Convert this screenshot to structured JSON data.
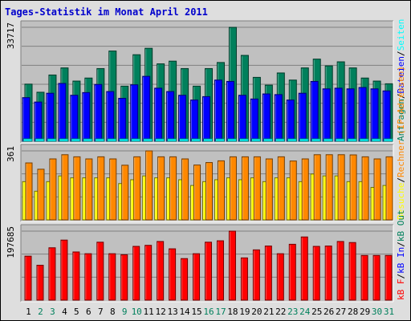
{
  "title": "Tages-Statistik im Monat April 2011",
  "colors": {
    "background": "#dedede",
    "panel": "#c0c0c0",
    "title": "#0000cc",
    "hits": "#00805c",
    "files": "#0000ff",
    "pages": "#00ffff",
    "visits": "#ffff00",
    "sites": "#ff8800",
    "kbf": "#ff0000",
    "kbin": "#0000ff",
    "kbout": "#00805c"
  },
  "chart_data": {
    "type": "bar",
    "x": [
      "1",
      "2",
      "3",
      "4",
      "5",
      "6",
      "7",
      "8",
      "9",
      "10",
      "11",
      "12",
      "13",
      "14",
      "15",
      "16",
      "17",
      "18",
      "19",
      "20",
      "21",
      "22",
      "23",
      "24",
      "25",
      "26",
      "27",
      "28",
      "29",
      "30",
      "31"
    ],
    "weekend_days": [
      "2",
      "3",
      "9",
      "10",
      "16",
      "17",
      "23",
      "24",
      "30",
      "31"
    ],
    "panels": [
      {
        "name": "hits-files-pages",
        "max_label": "33717",
        "ylim": [
          0,
          33717
        ],
        "legend": [
          {
            "text": "Anfragen",
            "color": "#00805c"
          },
          {
            "text": "/",
            "color": "#000000"
          },
          {
            "text": "Dateien",
            "color": "#0000ff"
          },
          {
            "text": "/",
            "color": "#000000"
          },
          {
            "text": "Seiten",
            "color": "#00ffff"
          }
        ],
        "series": [
          {
            "name": "Anfragen",
            "color": "#00805c",
            "values": [
              16900,
              14500,
              19600,
              21700,
              17800,
              18700,
              21500,
              26700,
              16300,
              25600,
              27500,
              22900,
              23700,
              21500,
              16300,
              21500,
              23300,
              33700,
              25400,
              18900,
              16600,
              20200,
              18100,
              21700,
              24300,
              22300,
              23500,
              21700,
              18700,
              17800,
              17000
            ]
          },
          {
            "name": "Dateien",
            "color": "#0000ff",
            "values": [
              12900,
              11600,
              14200,
              17100,
              13600,
              14400,
              16800,
              14700,
              12700,
              16700,
              19200,
              15700,
              14700,
              13600,
              12200,
              13200,
              18100,
              17700,
              13600,
              12500,
              14000,
              13800,
              12200,
              14200,
              17700,
              15500,
              15700,
              15500,
              15900,
              15500,
              14900
            ]
          },
          {
            "name": "Seiten",
            "color": "#00ffff",
            "values": [
              700,
              700,
              700,
              700,
              700,
              700,
              700,
              700,
              700,
              700,
              700,
              700,
              700,
              700,
              700,
              700,
              700,
              700,
              700,
              700,
              700,
              700,
              700,
              700,
              700,
              700,
              700,
              700,
              700,
              700,
              700
            ]
          }
        ]
      },
      {
        "name": "visits-sites",
        "max_label": "361",
        "ylim": [
          0,
          361
        ],
        "legend": [
          {
            "text": "Besuche",
            "color": "#ffff00"
          },
          {
            "text": "/",
            "color": "#000000"
          },
          {
            "text": "Rechner (IP-Adressen)",
            "color": "#ff8800"
          }
        ],
        "series": [
          {
            "name": "Besuche",
            "color": "#ffff00",
            "values": [
              200,
              150,
              200,
              230,
              220,
              220,
              220,
              220,
              190,
              210,
              230,
              220,
              220,
              210,
              180,
              200,
              210,
              220,
              210,
              220,
              200,
              220,
              220,
              200,
              240,
              230,
              230,
              200,
              200,
              170,
              180
            ]
          },
          {
            "name": "Rechner (IP-Adressen)",
            "color": "#ff8800",
            "values": [
              298,
              265,
              319,
              341,
              330,
              319,
              330,
              319,
              286,
              330,
              361,
              330,
              330,
              319,
              287,
              300,
              309,
              330,
              330,
              330,
              319,
              330,
              308,
              319,
              341,
              341,
              341,
              340,
              330,
              319,
              330
            ]
          }
        ]
      },
      {
        "name": "kbytes",
        "max_label": "197685",
        "ylim": [
          0,
          197685
        ],
        "legend": [
          {
            "text": "kB F",
            "color": "#ff0000"
          },
          {
            "text": "/",
            "color": "#000000"
          },
          {
            "text": "kB In",
            "color": "#0000ff"
          },
          {
            "text": "/",
            "color": "#000000"
          },
          {
            "text": "kB Out",
            "color": "#00805c"
          }
        ],
        "series": [
          {
            "name": "kB F",
            "color": "#ff0000",
            "values": [
              126000,
              100000,
              150000,
              172000,
              138000,
              133000,
              166000,
              133000,
              130000,
              154000,
              157000,
              168000,
              147000,
              119000,
              133000,
              166000,
              170000,
              197685,
              121000,
              144000,
              155000,
              133000,
              160000,
              181000,
              154000,
              155000,
              168000,
              165000,
              128000,
              128000,
              128000
            ]
          }
        ]
      }
    ]
  }
}
